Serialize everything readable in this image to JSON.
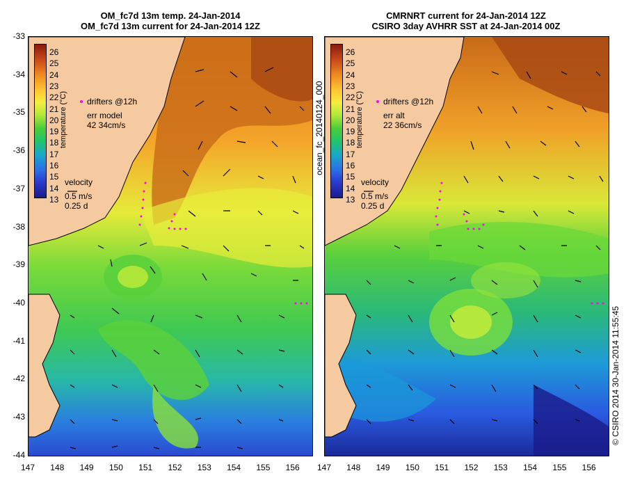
{
  "left_panel": {
    "title_line1": "OM_fc7d 13m temp. 24-Jan-2014",
    "title_line2": "OM_fc7d 13m current for 24-Jan-2014 12Z",
    "drifters_label": "drifters @12h",
    "err_label": "err model",
    "err_value": "42 34cm/s",
    "velocity_title": "velocity",
    "velocity_scale": "0.5 m/s",
    "velocity_time": "0.25 d"
  },
  "right_panel": {
    "title_line1": "CMRNRT current for 24-Jan-2014 12Z",
    "title_line2": "CSIRO 3day AVHRR SST at 24-Jan-2014 00Z",
    "drifters_label": "drifters @12h",
    "err_label": "err alt",
    "err_value": "22 36cm/s",
    "velocity_title": "velocity",
    "velocity_scale": "0.5 m/s",
    "velocity_time": "0.25 d"
  },
  "colorbar": {
    "title": "temperature (°C)",
    "ticks": [
      "26",
      "25",
      "24",
      "23",
      "22",
      "21",
      "20",
      "19",
      "18",
      "17",
      "16",
      "15",
      "14",
      "13"
    ]
  },
  "axes": {
    "y_ticks": [
      "-33",
      "-34",
      "-35",
      "-36",
      "-37",
      "-38",
      "-39",
      "-40",
      "-41",
      "-42",
      "-43",
      "-44"
    ],
    "x_ticks": [
      "147",
      "148",
      "149",
      "150",
      "151",
      "152",
      "153",
      "154",
      "155",
      "156"
    ]
  },
  "side_labels": {
    "middle": "ocean_fc_20140124_000",
    "right": "© CSIRO 2014   30-Jan-2014 11:55:45"
  },
  "colors": {
    "land": "#f6caa0",
    "warm": "#e88a1a",
    "mid": "#d8e838",
    "cool_green": "#48cc3a",
    "cool_blue": "#2a6ee8",
    "deep_blue": "#1a2a9a",
    "drifter": "#ff00ff"
  }
}
